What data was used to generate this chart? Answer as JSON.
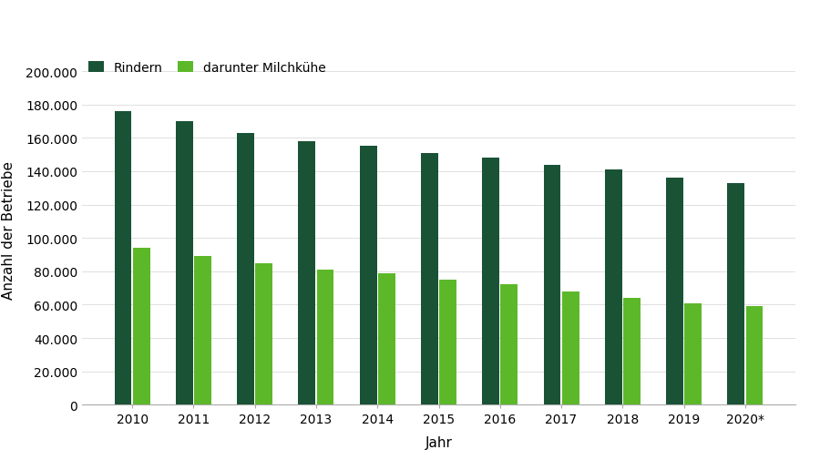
{
  "years": [
    "2010",
    "2011",
    "2012",
    "2013",
    "2014",
    "2015",
    "2016",
    "2017",
    "2018",
    "2019",
    "2020*"
  ],
  "rindern": [
    176000,
    170000,
    163000,
    158000,
    155000,
    151000,
    148000,
    144000,
    141000,
    136000,
    133000
  ],
  "milchkuehe": [
    94000,
    89000,
    85000,
    81000,
    79000,
    75000,
    72000,
    68000,
    64000,
    61000,
    59000
  ],
  "color_rindern": "#1a5236",
  "color_milchkuehe": "#5cb829",
  "legend_rindern": "Rindern",
  "legend_milchkuehe": "darunter Milchkühe",
  "ylabel": "Anzahl der Betriebe",
  "xlabel": "Jahr",
  "ylim": [
    0,
    210000
  ],
  "yticks": [
    0,
    20000,
    40000,
    60000,
    80000,
    100000,
    120000,
    140000,
    160000,
    180000,
    200000
  ],
  "bar_width": 0.28,
  "background_color": "#ffffff",
  "axis_fontsize": 11,
  "tick_fontsize": 10,
  "legend_fontsize": 10
}
